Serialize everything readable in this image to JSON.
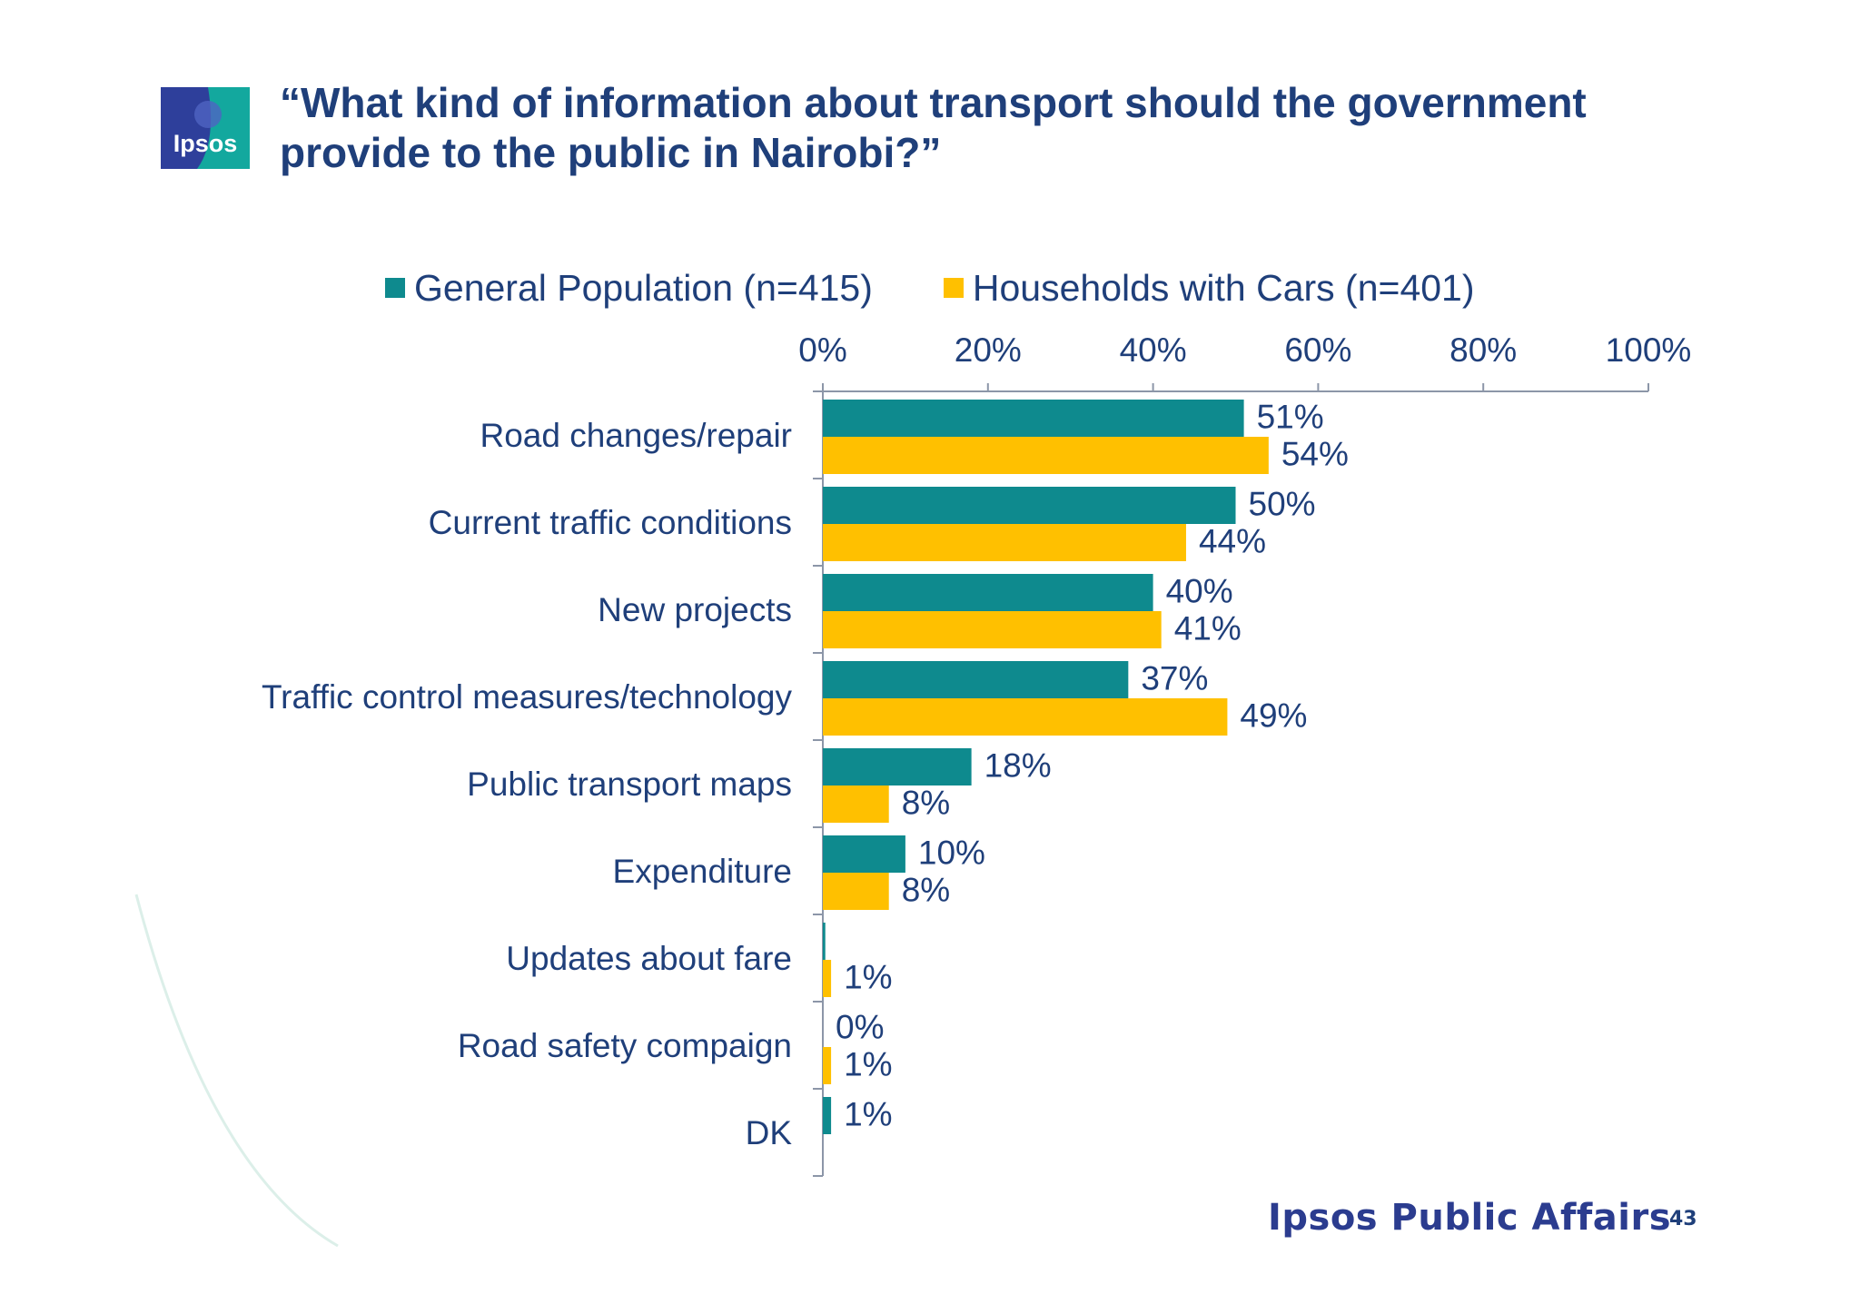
{
  "logo_text": "Ipsos",
  "title_lines": [
    "“What kind of information about transport should the government",
    "provide to the public in Nairobi?”"
  ],
  "footer": {
    "brand": "Ipsos Public Affairs",
    "page_number": "43"
  },
  "colors": {
    "title": "#1f3f7a",
    "general_population": "#0e8a8e",
    "households_with_cars": "#ffc000",
    "axis": "#8c96a8"
  },
  "chart_data": {
    "type": "bar",
    "orientation": "horizontal",
    "title": "",
    "xlabel": "",
    "ylabel": "",
    "xlim": [
      0,
      100
    ],
    "x_ticks": [
      "0%",
      "20%",
      "40%",
      "60%",
      "80%",
      "100%"
    ],
    "x_tick_values": [
      0,
      20,
      40,
      60,
      80,
      100
    ],
    "legend_position": "top",
    "categories": [
      "Road changes/repair",
      "Current traffic conditions",
      "New projects",
      "Traffic control measures/technology",
      "Public transport maps",
      "Expenditure",
      "Updates about fare",
      "Road safety compaign",
      "DK"
    ],
    "series": [
      {
        "name": "General Population (n=415)",
        "color": "#0e8a8e",
        "values": [
          51,
          50,
          40,
          37,
          18,
          10,
          0.3,
          0,
          1
        ],
        "labels": [
          "51%",
          "50%",
          "40%",
          "37%",
          "18%",
          "10%",
          "",
          "0%",
          "1%"
        ]
      },
      {
        "name": "Households with Cars (n=401)",
        "color": "#ffc000",
        "values": [
          54,
          44,
          41,
          49,
          8,
          8,
          1,
          1,
          null
        ],
        "labels": [
          "54%",
          "44%",
          "41%",
          "49%",
          "8%",
          "8%",
          "1%",
          "1%",
          ""
        ]
      }
    ]
  }
}
